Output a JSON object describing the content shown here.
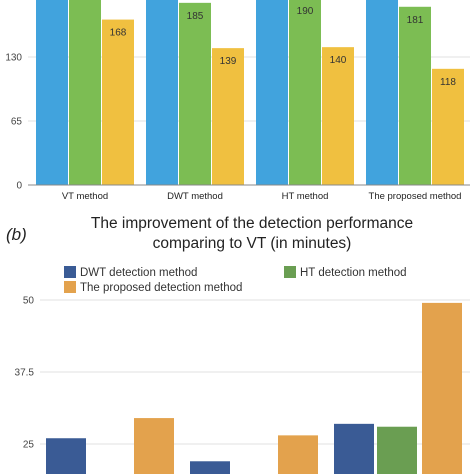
{
  "panel_label": "(b)",
  "chart_data": [
    {
      "type": "bar",
      "title": "",
      "categories": [
        "VT method",
        "DWT method",
        "HT method",
        "The proposed method"
      ],
      "yticks": [
        0,
        65,
        130
      ],
      "series": [
        {
          "color": "#41a3dd",
          "values": [
            210,
            210,
            210,
            210
          ]
        },
        {
          "color": "#7cbd53",
          "values": [
            210,
            185,
            190,
            181
          ]
        },
        {
          "color": "#f0c040",
          "values": [
            168,
            139,
            140,
            118
          ]
        }
      ],
      "data_labels": [
        [
          null,
          null,
          "168"
        ],
        [
          null,
          "185",
          "139"
        ],
        [
          null,
          "190",
          "140"
        ],
        [
          null,
          "181",
          "118"
        ]
      ]
    },
    {
      "type": "bar",
      "title_lines": [
        "The improvement of the detection performance",
        "comparing to VT (in minutes)"
      ],
      "yticks": [
        25,
        37.5,
        50
      ],
      "legend": [
        {
          "label": "DWT detection method",
          "color": "#3a5b95"
        },
        {
          "label": "HT detection method",
          "color": "#6a9e52"
        },
        {
          "label": "The proposed detection method",
          "color": "#e3a24d"
        }
      ],
      "bars": [
        {
          "color": "#3a5b95",
          "value": 26
        },
        {
          "color": "#e3a24d",
          "value": 29.5
        },
        {
          "color": "#3a5b95",
          "value": 22
        },
        {
          "color": "#e3a24d",
          "value": 26.5
        },
        {
          "color": "#3a5b95",
          "value": 28.5
        },
        {
          "color": "#6a9e52",
          "value": 28
        },
        {
          "color": "#e3a24d",
          "value": 49.5
        }
      ]
    }
  ]
}
